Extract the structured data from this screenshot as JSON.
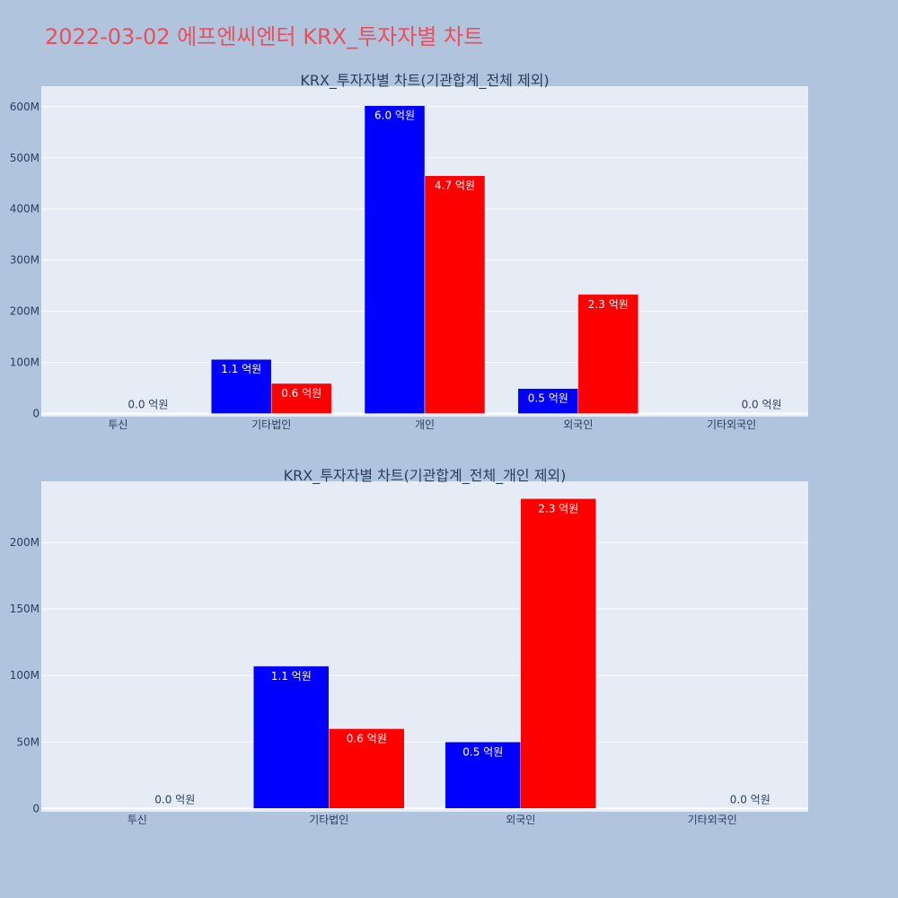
{
  "page_title": "2022-03-02 에프엔씨엔터 KRX_투자자별 차트",
  "colors": {
    "background": "#b0c4de",
    "plot_background": "#e5ecf6",
    "grid": "#ffffff",
    "title": "#e8505b",
    "text": "#2a3f5f",
    "series_a": "#0000ff",
    "series_b": "#ff0000"
  },
  "chart_data": [
    {
      "type": "bar",
      "title": "KRX_투자자별 차트(기관합계_전체 제외)",
      "categories": [
        "투신",
        "기타법인",
        "개인",
        "외국인",
        "기타외국인"
      ],
      "series": [
        {
          "color": "#0000ff",
          "values": [
            0,
            106000000,
            602000000,
            49000000,
            0
          ],
          "labels": [
            "",
            "1.1 억원",
            "6.0 억원",
            "0.5 억원",
            ""
          ]
        },
        {
          "color": "#ff0000",
          "values": [
            0,
            59000000,
            465000000,
            233000000,
            0
          ],
          "labels": [
            "0.0 억원",
            "0.6 억원",
            "4.7 억원",
            "2.3 억원",
            "0.0 억원"
          ]
        }
      ],
      "ylim": [
        -6000000,
        640000000
      ],
      "y_ticks": [
        {
          "value": 0,
          "label": "0"
        },
        {
          "value": 100000000,
          "label": "100M"
        },
        {
          "value": 200000000,
          "label": "200M"
        },
        {
          "value": 300000000,
          "label": "300M"
        },
        {
          "value": 400000000,
          "label": "400M"
        },
        {
          "value": 500000000,
          "label": "500M"
        },
        {
          "value": 600000000,
          "label": "600M"
        }
      ],
      "grid": true,
      "legend": "none"
    },
    {
      "type": "bar",
      "title": "KRX_투자자별 차트(기관합계_전체_개인 제외)",
      "categories": [
        "투신",
        "기타법인",
        "외국인",
        "기타외국인"
      ],
      "series": [
        {
          "color": "#0000ff",
          "values": [
            0,
            107000000,
            50000000,
            0
          ],
          "labels": [
            "",
            "1.1 억원",
            "0.5 억원",
            ""
          ]
        },
        {
          "color": "#ff0000",
          "values": [
            0,
            60000000,
            233000000,
            0
          ],
          "labels": [
            "0.0 억원",
            "0.6 억원",
            "2.3 억원",
            "0.0 억원"
          ]
        }
      ],
      "ylim": [
        -2500000,
        246000000
      ],
      "y_ticks": [
        {
          "value": 0,
          "label": "0"
        },
        {
          "value": 50000000,
          "label": "50M"
        },
        {
          "value": 100000000,
          "label": "100M"
        },
        {
          "value": 150000000,
          "label": "150M"
        },
        {
          "value": 200000000,
          "label": "200M"
        }
      ],
      "grid": true,
      "legend": "none"
    }
  ]
}
